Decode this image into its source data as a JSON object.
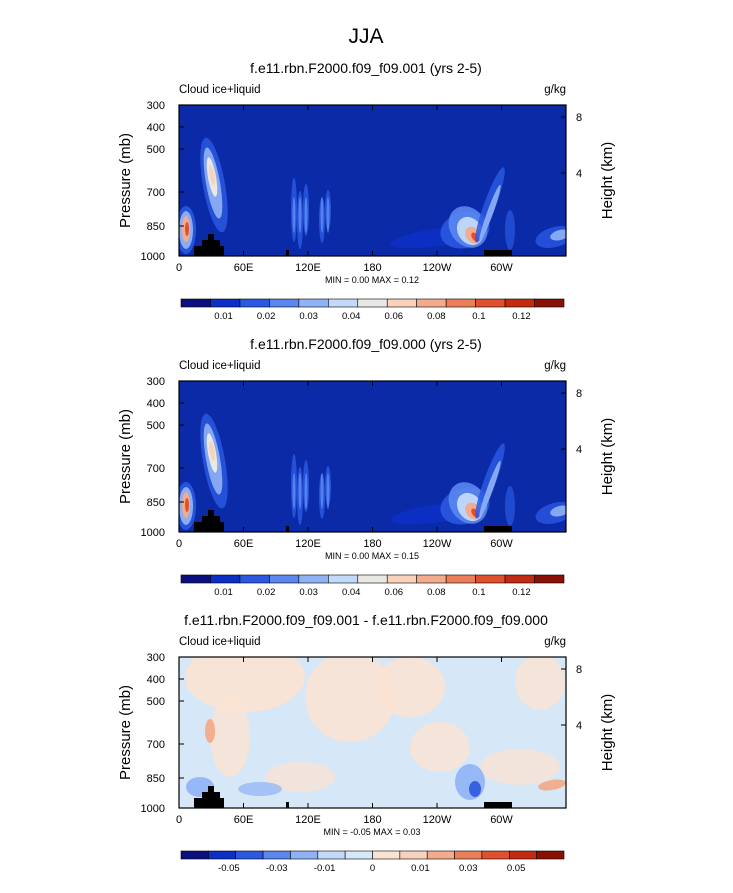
{
  "figure_title": "JJA",
  "colors": {
    "background": "#ffffff",
    "plot_bg_mean": "#0b2aa8",
    "plot_bg_diff": "#d6e7f7",
    "mask": "#000000"
  },
  "chart_data": [
    {
      "type": "heatmap",
      "title": "f.e11.rbn.F2000.f09_f09.001 (yrs 2-5)",
      "left_label": "Cloud ice+liquid",
      "units": "g/kg",
      "ylabel": "Pressure (mb)",
      "ylabel_right": "Height (km)",
      "xticks": [
        "0",
        "60E",
        "120E",
        "180",
        "120W",
        "60W"
      ],
      "yticks": [
        "300",
        "400",
        "500",
        "700",
        "850",
        "1000"
      ],
      "ylim": [
        1000,
        300
      ],
      "yticks_right": [
        "8",
        "4"
      ],
      "stats": "MIN =   0.00  MAX =   0.12",
      "min": 0.0,
      "max": 0.12,
      "colorbar": {
        "labels": [
          "0.01",
          "0.02",
          "0.03",
          "0.04",
          "0.06",
          "0.08",
          "0.1",
          "0.12"
        ],
        "colors": [
          "#0b0f80",
          "#0c2fc8",
          "#2a58e0",
          "#5a86ee",
          "#8fb2f5",
          "#c3d9fa",
          "#eae8e4",
          "#f9d2bc",
          "#f3ab8b",
          "#ec7f5a",
          "#e1502d",
          "#c42a12",
          "#8a1006"
        ]
      }
    },
    {
      "type": "heatmap",
      "title": "f.e11.rbn.F2000.f09_f09.000 (yrs 2-5)",
      "left_label": "Cloud ice+liquid",
      "units": "g/kg",
      "ylabel": "Pressure (mb)",
      "ylabel_right": "Height (km)",
      "xticks": [
        "0",
        "60E",
        "120E",
        "180",
        "120W",
        "60W"
      ],
      "yticks": [
        "300",
        "400",
        "500",
        "700",
        "850",
        "1000"
      ],
      "ylim": [
        1000,
        300
      ],
      "yticks_right": [
        "8",
        "4"
      ],
      "stats": "MIN =   0.00  MAX =   0.15",
      "min": 0.0,
      "max": 0.15,
      "colorbar": {
        "labels": [
          "0.01",
          "0.02",
          "0.03",
          "0.04",
          "0.06",
          "0.08",
          "0.1",
          "0.12"
        ],
        "colors": [
          "#0b0f80",
          "#0c2fc8",
          "#2a58e0",
          "#5a86ee",
          "#8fb2f5",
          "#c3d9fa",
          "#eae8e4",
          "#f9d2bc",
          "#f3ab8b",
          "#ec7f5a",
          "#e1502d",
          "#c42a12",
          "#8a1006"
        ]
      }
    },
    {
      "type": "heatmap",
      "title": "f.e11.rbn.F2000.f09_f09.001 - f.e11.rbn.F2000.f09_f09.000",
      "left_label": "Cloud ice+liquid",
      "units": "g/kg",
      "ylabel": "Pressure (mb)",
      "ylabel_right": "Height (km)",
      "xticks": [
        "0",
        "60E",
        "120E",
        "180",
        "120W",
        "60W"
      ],
      "yticks": [
        "300",
        "400",
        "500",
        "700",
        "850",
        "1000"
      ],
      "ylim": [
        1000,
        300
      ],
      "yticks_right": [
        "8",
        "4"
      ],
      "stats": "MIN =  -0.05  MAX =   0.03",
      "min": -0.05,
      "max": 0.03,
      "colorbar": {
        "labels": [
          "-0.05",
          "-0.03",
          "-0.01",
          "0",
          "0.01",
          "0.03",
          "0.05"
        ],
        "colors": [
          "#0b0f80",
          "#0c2fc8",
          "#2a58e0",
          "#5a86ee",
          "#8fb2f5",
          "#c3d9fa",
          "#d6e7f7",
          "#fbe3d2",
          "#f9d2bc",
          "#f3ab8b",
          "#ec7f5a",
          "#e1502d",
          "#c42a12",
          "#8a1006"
        ]
      }
    }
  ]
}
